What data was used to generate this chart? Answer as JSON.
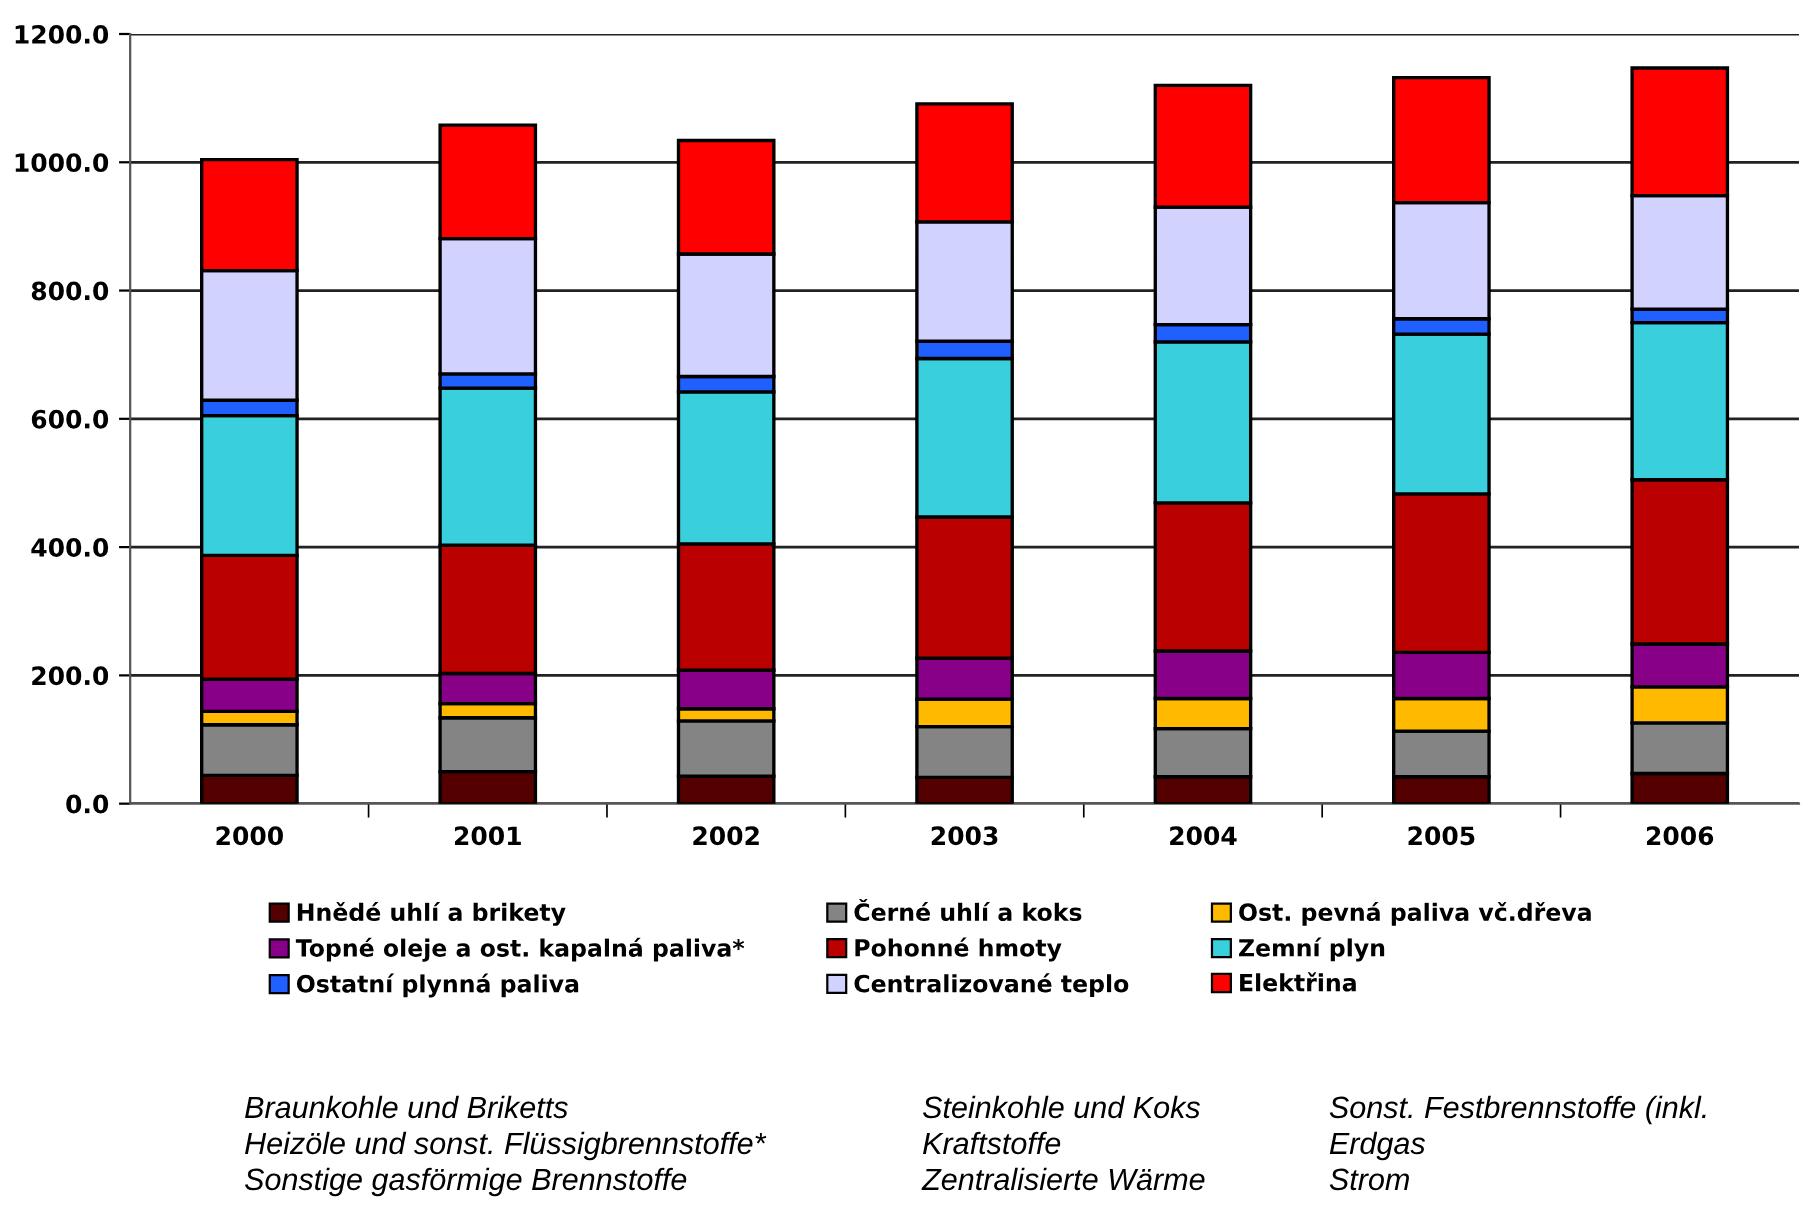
{
  "chart_data": {
    "type": "bar",
    "stacked": true,
    "categories": [
      "2000",
      "2001",
      "2002",
      "2003",
      "2004",
      "2005",
      "2006"
    ],
    "series": [
      {
        "name": "Hnědé uhlí a brikety",
        "color": "#550000",
        "values": [
          44,
          50,
          43,
          41,
          42,
          42,
          47
        ]
      },
      {
        "name": "Černé uhlí a koks",
        "color": "#848484",
        "values": [
          79,
          84,
          86,
          79,
          75,
          71,
          79
        ]
      },
      {
        "name": "Ost. pevná paliva vč.dřeva",
        "color": "#ffba00",
        "values": [
          21,
          22,
          19,
          43,
          47,
          51,
          56
        ]
      },
      {
        "name": "Topné oleje a ost. kapalná paliva*",
        "color": "#880088",
        "values": [
          50,
          47,
          60,
          64,
          74,
          72,
          67
        ]
      },
      {
        "name": "Pohonné hmoty",
        "color": "#bb0000",
        "values": [
          193,
          200,
          197,
          220,
          231,
          247,
          256
        ]
      },
      {
        "name": "Zemní plyn",
        "color": "#3acfdc",
        "values": [
          218,
          245,
          237,
          247,
          251,
          249,
          245
        ]
      },
      {
        "name": "Ostatní plynná paliva",
        "color": "#2060ff",
        "values": [
          24,
          22,
          24,
          27,
          27,
          24,
          21
        ]
      },
      {
        "name": "Centralizované teplo",
        "color": "#d2d2ff",
        "values": [
          202,
          211,
          191,
          186,
          183,
          181,
          177
        ]
      },
      {
        "name": "Elektřina",
        "color": "#ff0000",
        "values": [
          173,
          177,
          177,
          184,
          190,
          195,
          199
        ]
      }
    ],
    "ylim": [
      0,
      1200
    ],
    "yticks": [
      {
        "value": 0,
        "label": "0.0"
      },
      {
        "value": 200,
        "label": "200.0"
      },
      {
        "value": 400,
        "label": "400.0"
      },
      {
        "value": 600,
        "label": "600.0"
      },
      {
        "value": 800,
        "label": "800.0"
      },
      {
        "value": 1000,
        "label": "1000.0"
      },
      {
        "value": 1200,
        "label": "1200.0"
      }
    ],
    "grid": "y",
    "legend": "bottom",
    "annotations": [
      "Braunkohle und Briketts",
      "Steinkohle und Koks",
      "Sonst. Festbrennstoffe (inkl.",
      "Heizöle und sonst. Flüssigbrennstoffe*",
      "Kraftstoffe",
      "Erdgas",
      "Sonstige gasförmige Brennstoffe",
      "Zentralisierte Wärme",
      "Strom"
    ]
  }
}
